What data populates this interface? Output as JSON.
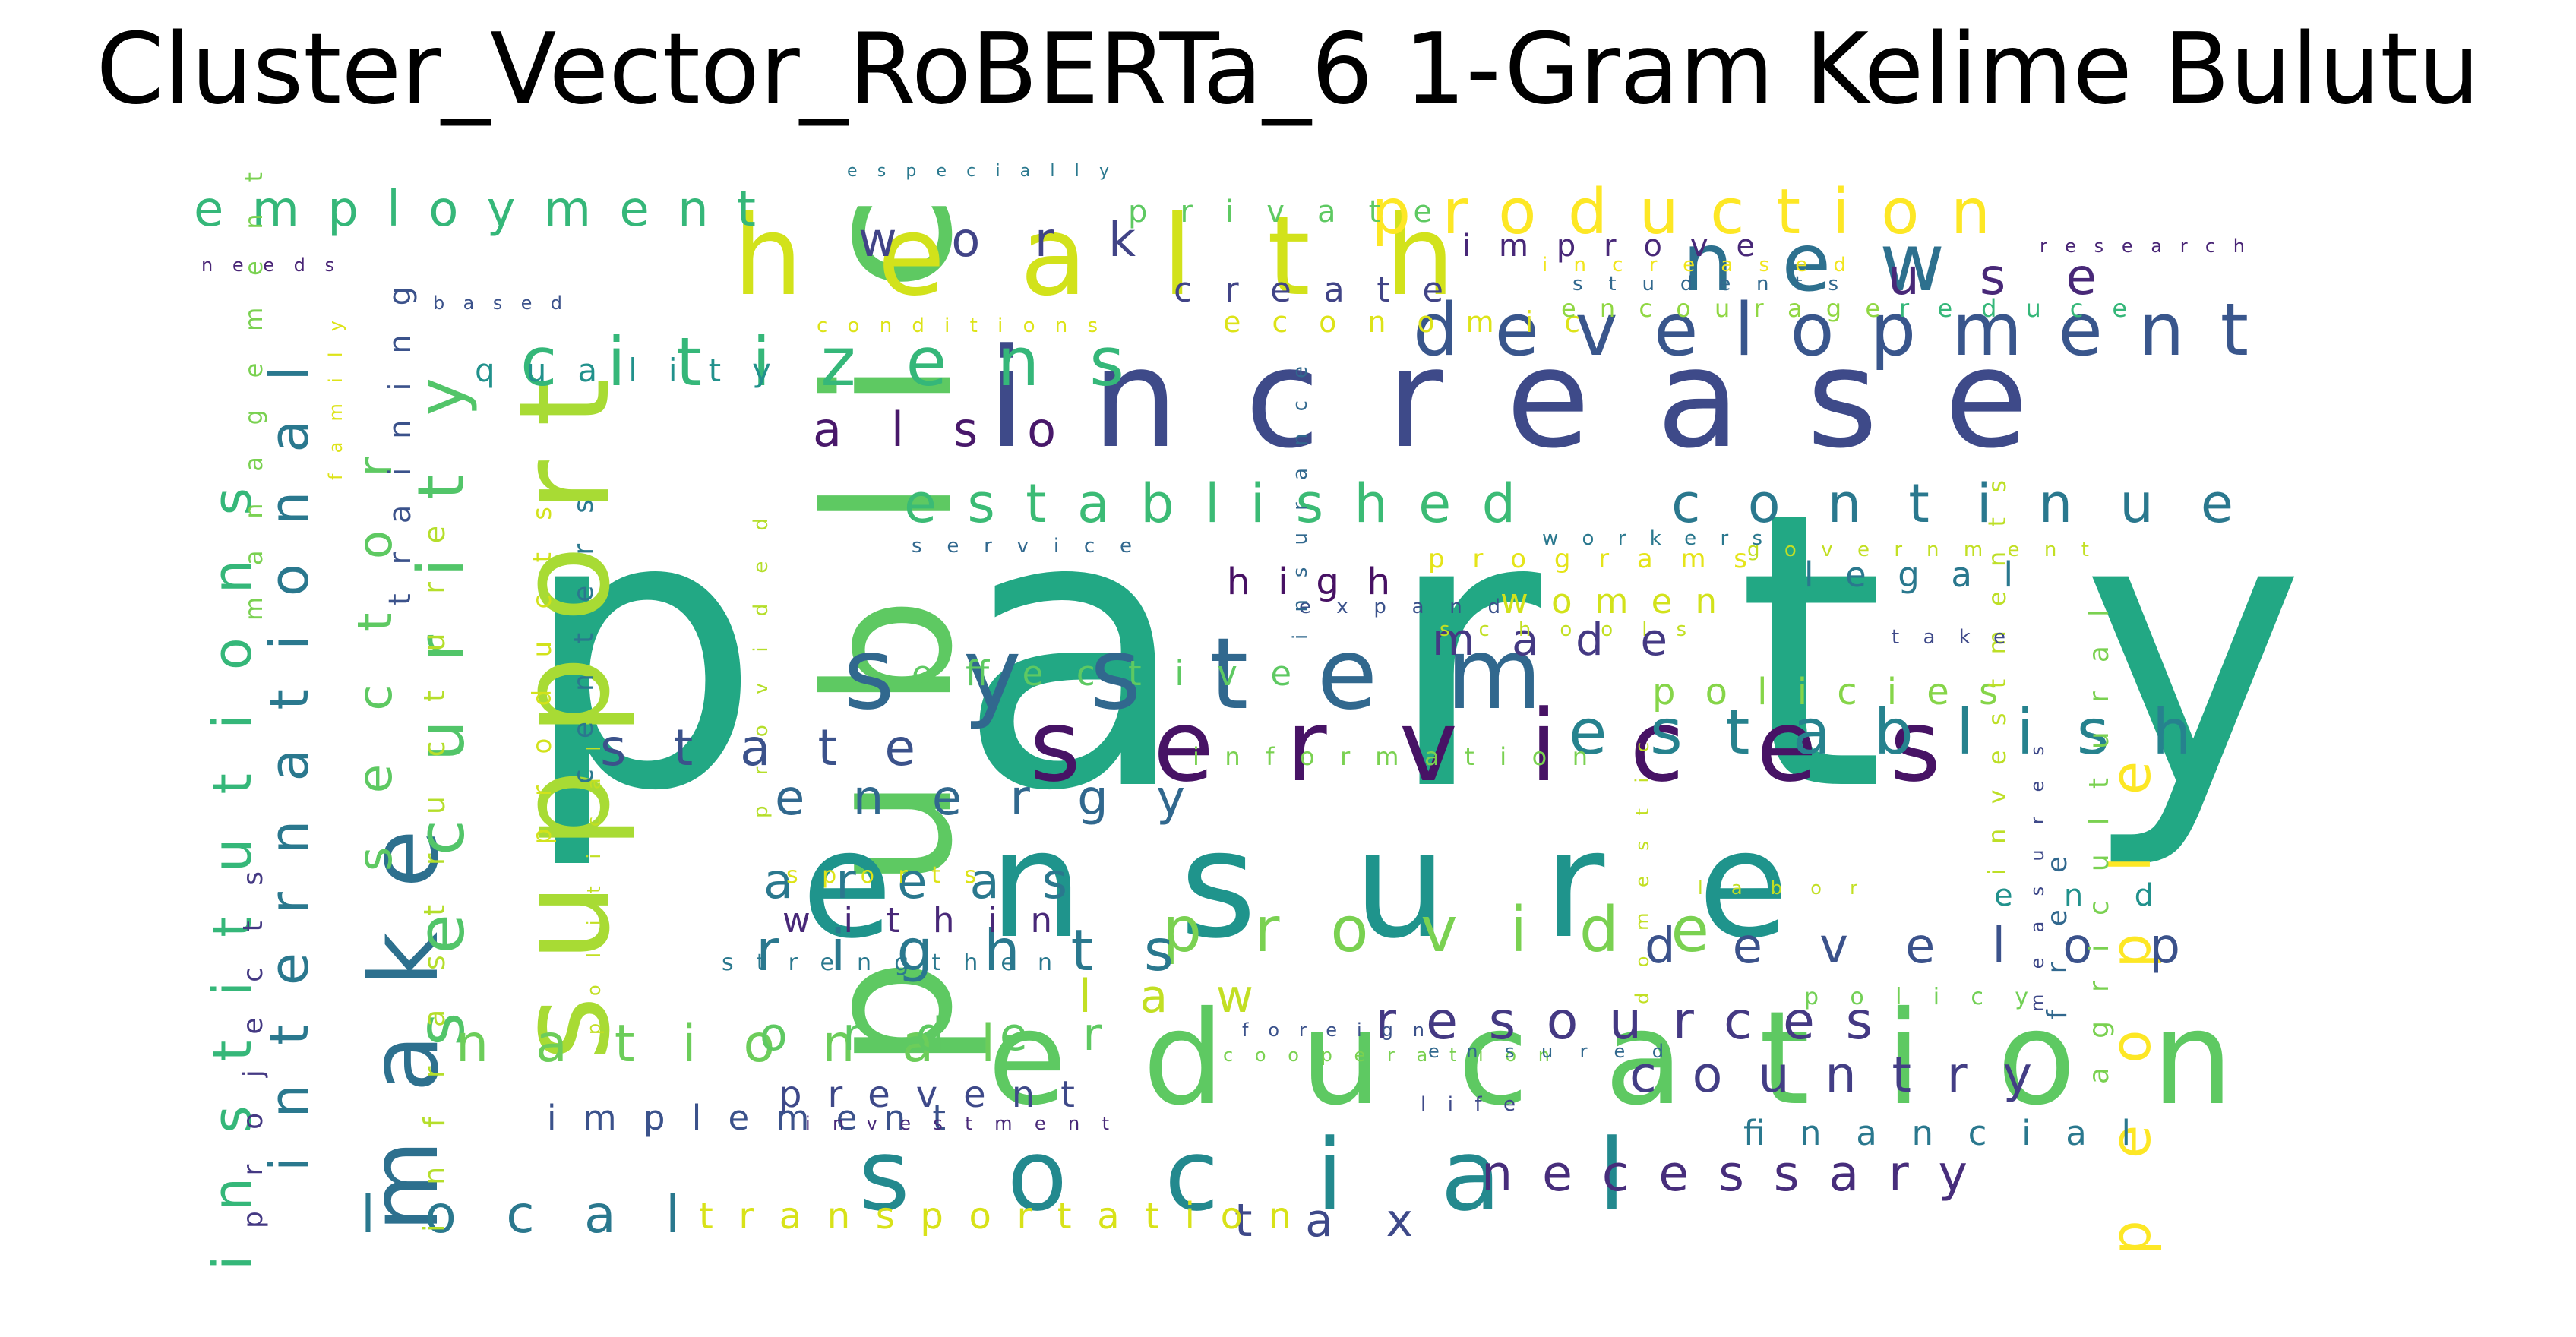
{
  "title": "Cluster_Vector_RoBERTa_6 1-Gram Kelime Bulutu",
  "word_cloud": {
    "words": [
      {
        "text": "party",
        "color": "#22a884"
      },
      {
        "text": "public",
        "color": "#5ec962"
      },
      {
        "text": "ensure",
        "color": "#1f948c"
      },
      {
        "text": "education",
        "color": "#5ec962"
      },
      {
        "text": "increase",
        "color": "#3e4a89"
      },
      {
        "text": "support",
        "color": "#a8db34"
      },
      {
        "text": "health",
        "color": "#d2e21b"
      },
      {
        "text": "services",
        "color": "#471365"
      },
      {
        "text": "social",
        "color": "#23898e"
      },
      {
        "text": "system",
        "color": "#31688e"
      },
      {
        "text": "make",
        "color": "#2d708e"
      },
      {
        "text": "new",
        "color": "#2d708e"
      },
      {
        "text": "development",
        "color": "#39568c"
      },
      {
        "text": "production",
        "color": "#fde725"
      },
      {
        "text": "citizens",
        "color": "#35b779"
      },
      {
        "text": "security",
        "color": "#52c569"
      },
      {
        "text": "provide",
        "color": "#7ad151"
      },
      {
        "text": "establish",
        "color": "#26828e"
      },
      {
        "text": "people",
        "color": "#fde725"
      },
      {
        "text": "institutions",
        "color": "#35b779"
      },
      {
        "text": "international",
        "color": "#2a788e"
      },
      {
        "text": "rights",
        "color": "#2a788e"
      },
      {
        "text": "established",
        "color": "#3bbb75"
      },
      {
        "text": "continue",
        "color": "#2a788e"
      },
      {
        "text": "resources",
        "color": "#443983"
      },
      {
        "text": "country",
        "color": "#433e85"
      },
      {
        "text": "necessary",
        "color": "#472d7b"
      },
      {
        "text": "local",
        "color": "#2a788e"
      },
      {
        "text": "national",
        "color": "#6ccd5a"
      },
      {
        "text": "employment",
        "color": "#35b779"
      },
      {
        "text": "state",
        "color": "#3b528b"
      },
      {
        "text": "energy",
        "color": "#31688e"
      },
      {
        "text": "areas",
        "color": "#2a788e"
      },
      {
        "text": "work",
        "color": "#414487"
      },
      {
        "text": "also",
        "color": "#48186a"
      },
      {
        "text": "develop",
        "color": "#3b528b"
      },
      {
        "text": "sector",
        "color": "#5ec962"
      },
      {
        "text": "infrastructure",
        "color": "#b5de2b"
      },
      {
        "text": "use",
        "color": "#482878"
      },
      {
        "text": "tax",
        "color": "#3e4989"
      },
      {
        "text": "transportation",
        "color": "#d8e219"
      },
      {
        "text": "order",
        "color": "#5ec962"
      },
      {
        "text": "prevent",
        "color": "#3e4989"
      },
      {
        "text": "law",
        "color": "#c2df23"
      },
      {
        "text": "made",
        "color": "#443983"
      },
      {
        "text": "policies",
        "color": "#86d549"
      },
      {
        "text": "women",
        "color": "#d2e21b"
      },
      {
        "text": "effective",
        "color": "#5ec962"
      },
      {
        "text": "high",
        "color": "#471164"
      },
      {
        "text": "legal",
        "color": "#2a788e"
      },
      {
        "text": "financial",
        "color": "#2a788e"
      },
      {
        "text": "within",
        "color": "#482878"
      },
      {
        "text": "implement",
        "color": "#3b528b"
      },
      {
        "text": "activities",
        "color": "#a0da39"
      },
      {
        "text": "training",
        "color": "#3b528b"
      },
      {
        "text": "quality",
        "color": "#21918c"
      },
      {
        "text": "create",
        "color": "#414487"
      },
      {
        "text": "improve",
        "color": "#482878"
      },
      {
        "text": "economic",
        "color": "#dde318"
      },
      {
        "text": "private",
        "color": "#5ec962"
      },
      {
        "text": "projects",
        "color": "#443983"
      },
      {
        "text": "agricultural",
        "color": "#7ad151"
      },
      {
        "text": "free",
        "color": "#31688e"
      },
      {
        "text": "end",
        "color": "#21918c"
      },
      {
        "text": "investments",
        "color": "#bddf26"
      },
      {
        "text": "centers",
        "color": "#2a788e"
      },
      {
        "text": "products",
        "color": "#d2e21b"
      },
      {
        "text": "management",
        "color": "#7ad151"
      },
      {
        "text": "programs",
        "color": "#e5e419"
      },
      {
        "text": "encourage",
        "color": "#90d743"
      },
      {
        "text": "reduce",
        "color": "#35b779"
      },
      {
        "text": "information",
        "color": "#7ad151"
      },
      {
        "text": "strengthen",
        "color": "#2a788e"
      },
      {
        "text": "sports",
        "color": "#dde318"
      },
      {
        "text": "policy",
        "color": "#73d056"
      },
      {
        "text": "especially",
        "color": "#2a788e"
      },
      {
        "text": "increased",
        "color": "#f1e51d"
      },
      {
        "text": "research",
        "color": "#482475"
      },
      {
        "text": "needs",
        "color": "#482475"
      },
      {
        "text": "students",
        "color": "#31688e"
      },
      {
        "text": "based",
        "color": "#3b528b"
      },
      {
        "text": "conditions",
        "color": "#dde318"
      },
      {
        "text": "family",
        "color": "#dde318"
      },
      {
        "text": "service",
        "color": "#31688e"
      },
      {
        "text": "workers",
        "color": "#2a788e"
      },
      {
        "text": "government",
        "color": "#c2df23"
      },
      {
        "text": "expand",
        "color": "#3b528b"
      },
      {
        "text": "schools",
        "color": "#c2df23"
      },
      {
        "text": "take",
        "color": "#3e4989"
      },
      {
        "text": "insurance",
        "color": "#31688e"
      },
      {
        "text": "provided",
        "color": "#b5de2b"
      },
      {
        "text": "political",
        "color": "#c2df23"
      },
      {
        "text": "domestic",
        "color": "#c2df23"
      },
      {
        "text": "measures",
        "color": "#3e4989"
      },
      {
        "text": "labor",
        "color": "#c2df23"
      },
      {
        "text": "foreign",
        "color": "#3b528b"
      },
      {
        "text": "cooperation",
        "color": "#7ad151"
      },
      {
        "text": "ensured",
        "color": "#31688e"
      },
      {
        "text": "investment",
        "color": "#482878"
      },
      {
        "text": "life",
        "color": "#3e4989"
      }
    ]
  }
}
